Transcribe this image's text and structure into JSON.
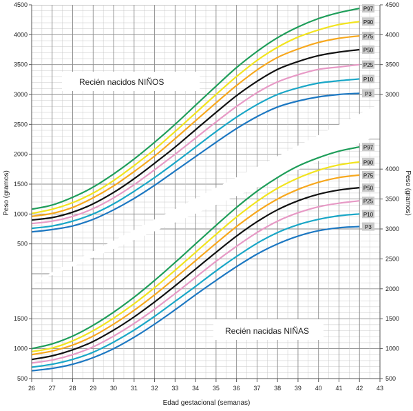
{
  "chart_data": {
    "type": "line",
    "xlabel": "Edad gestacional (semanas)",
    "ylabel": "Peso (gramos)",
    "x_ticks": [
      "26",
      "27",
      "28",
      "29",
      "30",
      "31",
      "32",
      "33",
      "34",
      "35",
      "36",
      "37",
      "38",
      "39",
      "40",
      "41",
      "42",
      "43"
    ],
    "x_range": [
      26,
      43
    ],
    "boys": {
      "title": "Recién nacidos NIÑOS",
      "y_range": [
        0,
        4500
      ],
      "y_ticks": [
        "500",
        "1000",
        "1500",
        "2000",
        "2500",
        "3000",
        "3500",
        "4000",
        "4500"
      ],
      "y_ticks_right": [
        "3000",
        "3500",
        "4000",
        "4500"
      ],
      "x": [
        26,
        27,
        28,
        29,
        30,
        31,
        32,
        33,
        34,
        35,
        36,
        37,
        38,
        39,
        40,
        41,
        42
      ],
      "series": [
        {
          "name": "P97",
          "color": "#1f9e5a",
          "values": [
            1080,
            1150,
            1280,
            1450,
            1670,
            1920,
            2200,
            2500,
            2820,
            3140,
            3450,
            3720,
            3950,
            4130,
            4270,
            4370,
            4440
          ]
        },
        {
          "name": "P90",
          "color": "#f2e41f",
          "values": [
            1010,
            1080,
            1190,
            1350,
            1560,
            1810,
            2080,
            2380,
            2690,
            3000,
            3300,
            3570,
            3790,
            3960,
            4080,
            4170,
            4220
          ]
        },
        {
          "name": "P75",
          "color": "#f7a81e",
          "values": [
            960,
            1010,
            1110,
            1270,
            1470,
            1710,
            1970,
            2260,
            2560,
            2860,
            3150,
            3410,
            3620,
            3760,
            3870,
            3940,
            3980
          ]
        },
        {
          "name": "P50",
          "color": "#111111",
          "values": [
            900,
            940,
            1030,
            1170,
            1360,
            1590,
            1850,
            2120,
            2410,
            2700,
            2980,
            3220,
            3420,
            3550,
            3650,
            3710,
            3750
          ]
        },
        {
          "name": "P25",
          "color": "#e79ac6",
          "values": [
            840,
            880,
            960,
            1090,
            1270,
            1490,
            1740,
            2000,
            2270,
            2540,
            2800,
            3030,
            3210,
            3330,
            3420,
            3460,
            3500
          ]
        },
        {
          "name": "P10",
          "color": "#1aa7c7",
          "values": [
            760,
            800,
            880,
            1000,
            1170,
            1380,
            1610,
            1860,
            2120,
            2380,
            2620,
            2830,
            3000,
            3110,
            3190,
            3230,
            3260
          ]
        },
        {
          "name": "P3",
          "color": "#1d78c2",
          "values": [
            700,
            740,
            800,
            910,
            1070,
            1260,
            1480,
            1720,
            1960,
            2200,
            2430,
            2630,
            2790,
            2890,
            2960,
            3000,
            3020
          ]
        }
      ]
    },
    "girls": {
      "title": "Recién nacidas NIÑAS",
      "y_range": [
        500,
        4500
      ],
      "y_ticks": [
        "500",
        "1000",
        "1500"
      ],
      "y_ticks_right": [
        "500",
        "1000",
        "1500",
        "2000",
        "2500",
        "3000",
        "3500",
        "4000"
      ],
      "x": [
        26,
        27,
        28,
        29,
        30,
        31,
        32,
        33,
        34,
        35,
        36,
        37,
        38,
        39,
        40,
        41,
        42
      ],
      "series": [
        {
          "name": "P97",
          "color": "#1f9e5a",
          "values": [
            1000,
            1080,
            1210,
            1390,
            1610,
            1860,
            2140,
            2440,
            2750,
            3060,
            3360,
            3630,
            3860,
            4050,
            4190,
            4300,
            4370
          ]
        },
        {
          "name": "P90",
          "color": "#f2e41f",
          "values": [
            950,
            1010,
            1130,
            1300,
            1510,
            1750,
            2020,
            2310,
            2610,
            2910,
            3200,
            3460,
            3680,
            3850,
            3980,
            4070,
            4120
          ]
        },
        {
          "name": "P75",
          "color": "#f7a81e",
          "values": [
            900,
            960,
            1060,
            1210,
            1410,
            1640,
            1900,
            2180,
            2470,
            2760,
            3040,
            3290,
            3500,
            3660,
            3780,
            3860,
            3900
          ]
        },
        {
          "name": "P50",
          "color": "#111111",
          "values": [
            820,
            880,
            980,
            1120,
            1310,
            1530,
            1780,
            2050,
            2330,
            2610,
            2880,
            3120,
            3320,
            3470,
            3580,
            3650,
            3690
          ]
        },
        {
          "name": "P25",
          "color": "#e79ac6",
          "values": [
            760,
            810,
            900,
            1030,
            1210,
            1420,
            1660,
            1920,
            2190,
            2460,
            2710,
            2940,
            3130,
            3270,
            3370,
            3430,
            3470
          ]
        },
        {
          "name": "P10",
          "color": "#1aa7c7",
          "values": [
            690,
            740,
            820,
            940,
            1110,
            1310,
            1540,
            1790,
            2040,
            2300,
            2540,
            2760,
            2940,
            3070,
            3160,
            3220,
            3250
          ]
        },
        {
          "name": "P3",
          "color": "#1d78c2",
          "values": [
            630,
            670,
            740,
            850,
            1000,
            1190,
            1410,
            1650,
            1900,
            2140,
            2370,
            2580,
            2750,
            2880,
            2970,
            3020,
            3040
          ]
        }
      ]
    }
  }
}
